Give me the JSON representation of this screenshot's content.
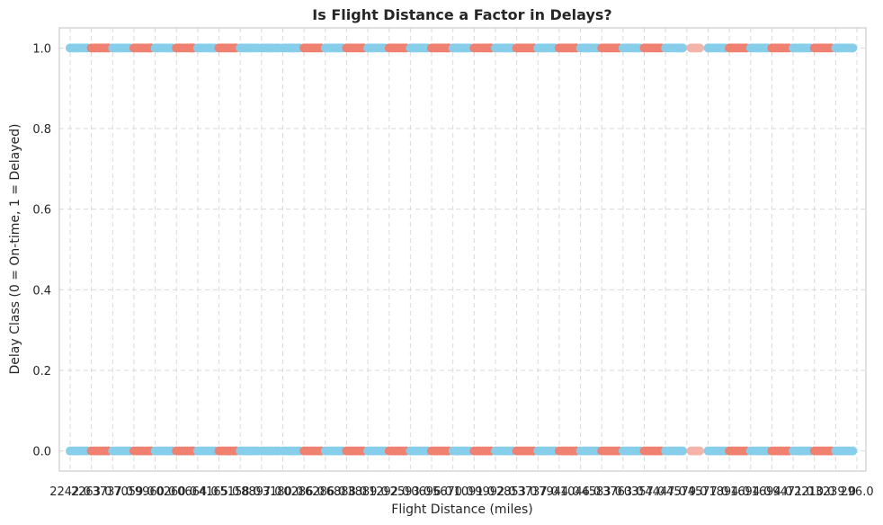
{
  "chart_data": {
    "type": "scatter",
    "title": "Is Flight Distance a Factor in Delays?",
    "xlabel": "Flight Distance (miles)",
    "ylabel": "Delay Class (0 = On-time, 1 = Delayed)",
    "ylim": [
      -0.05,
      1.05
    ],
    "y_ticks": [
      "0.0",
      "0.2",
      "0.4",
      "0.6",
      "0.8",
      "1.0"
    ],
    "x_tick_labels": [
      "2242.0",
      "2263.0",
      "3737.0",
      "7059.0",
      "9960.0",
      "0260.0",
      "0664.0",
      "4165.0",
      "5158.0",
      "8897.0",
      "3180.0",
      "0286.0",
      "6286.0",
      "6888.0",
      "3889.0",
      "1292.0",
      "2593.0",
      "0696.0",
      "5670.0",
      "1091.0",
      "9992.0",
      "2853.0",
      "3737.0",
      "7944.0",
      "1046.0",
      "4583.0",
      "3763.0",
      "0357.0",
      "4447.0",
      "4579.0",
      "4577.0",
      "1894.0",
      "1694.0",
      "1694.0",
      "9471.0",
      "2210.0",
      "3239.0",
      "296.0"
    ],
    "grid": true,
    "legend": "none",
    "colors": {
      "on_time_blue": "#87ceeb",
      "delayed_red": "#f08070",
      "faded": "#f4b4aa"
    },
    "series": [
      {
        "y": [
          1,
          0
        ],
        "bands": [
          {
            "x_from": 0,
            "x_to": 0.8,
            "color": "#87ceeb"
          },
          {
            "x_from": 1.0,
            "x_to": 1.8,
            "color": "#f08070"
          },
          {
            "x_from": 2.0,
            "x_to": 2.8,
            "color": "#87ceeb"
          },
          {
            "x_from": 3.0,
            "x_to": 3.8,
            "color": "#f08070"
          },
          {
            "x_from": 4.0,
            "x_to": 4.8,
            "color": "#87ceeb"
          },
          {
            "x_from": 5.0,
            "x_to": 5.8,
            "color": "#f08070"
          },
          {
            "x_from": 6.0,
            "x_to": 6.8,
            "color": "#87ceeb"
          },
          {
            "x_from": 7.0,
            "x_to": 7.8,
            "color": "#f08070"
          },
          {
            "x_from": 8.0,
            "x_to": 8.8,
            "color": "#87ceeb"
          },
          {
            "x_from": 9.0,
            "x_to": 9.8,
            "color": "#87ceeb"
          },
          {
            "x_from": 10.0,
            "x_to": 10.8,
            "color": "#87ceeb"
          },
          {
            "x_from": 11.0,
            "x_to": 11.8,
            "color": "#f08070"
          },
          {
            "x_from": 12.0,
            "x_to": 12.8,
            "color": "#87ceeb"
          },
          {
            "x_from": 13.0,
            "x_to": 13.8,
            "color": "#f08070"
          },
          {
            "x_from": 14.0,
            "x_to": 14.8,
            "color": "#87ceeb"
          },
          {
            "x_from": 15.0,
            "x_to": 15.8,
            "color": "#f08070"
          },
          {
            "x_from": 16.0,
            "x_to": 16.8,
            "color": "#87ceeb"
          },
          {
            "x_from": 17.0,
            "x_to": 17.8,
            "color": "#f08070"
          },
          {
            "x_from": 18.0,
            "x_to": 18.8,
            "color": "#87ceeb"
          },
          {
            "x_from": 19.0,
            "x_to": 19.8,
            "color": "#f08070"
          },
          {
            "x_from": 20.0,
            "x_to": 20.8,
            "color": "#87ceeb"
          },
          {
            "x_from": 21.0,
            "x_to": 21.8,
            "color": "#f08070"
          },
          {
            "x_from": 22.0,
            "x_to": 22.8,
            "color": "#87ceeb"
          },
          {
            "x_from": 23.0,
            "x_to": 23.8,
            "color": "#f08070"
          },
          {
            "x_from": 24.0,
            "x_to": 24.8,
            "color": "#87ceeb"
          },
          {
            "x_from": 25.0,
            "x_to": 25.8,
            "color": "#f08070"
          },
          {
            "x_from": 26.0,
            "x_to": 26.8,
            "color": "#87ceeb"
          },
          {
            "x_from": 27.0,
            "x_to": 27.8,
            "color": "#f08070"
          },
          {
            "x_from": 28.0,
            "x_to": 28.8,
            "color": "#87ceeb"
          },
          {
            "x_from": 29.2,
            "x_to": 29.6,
            "color": "#f4b4aa"
          },
          {
            "x_from": 30.0,
            "x_to": 30.8,
            "color": "#87ceeb"
          },
          {
            "x_from": 31.0,
            "x_to": 31.8,
            "color": "#f08070"
          },
          {
            "x_from": 32.0,
            "x_to": 32.8,
            "color": "#87ceeb"
          },
          {
            "x_from": 33.0,
            "x_to": 33.8,
            "color": "#f08070"
          },
          {
            "x_from": 34.0,
            "x_to": 34.8,
            "color": "#87ceeb"
          },
          {
            "x_from": 35.0,
            "x_to": 35.8,
            "color": "#f08070"
          },
          {
            "x_from": 36.0,
            "x_to": 36.8,
            "color": "#87ceeb"
          }
        ]
      }
    ]
  }
}
